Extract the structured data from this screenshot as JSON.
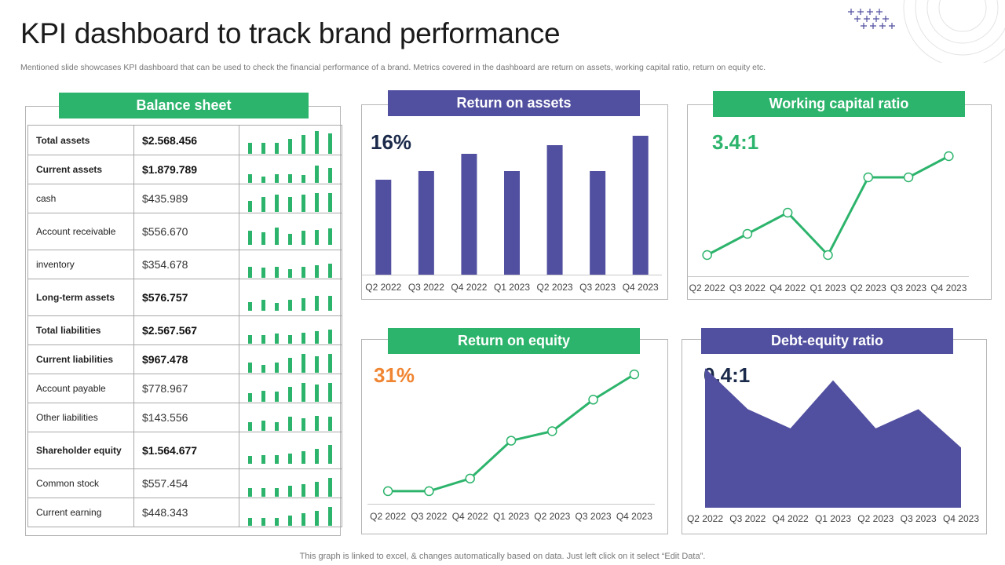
{
  "title": "KPI dashboard to track brand performance",
  "subtitle": "Mentioned slide showcases KPI dashboard that can be used to check the financial performance of a brand. Metrics covered in the dashboard are return on assets, working capital ratio, return on equity etc.",
  "footer": "This graph is linked to excel, & changes automatically based on data. Just left click on it select “Edit Data”.",
  "colors": {
    "green": "#2db46c",
    "purple": "#514f9f",
    "orange": "#f08532",
    "navy": "#1b2a4a"
  },
  "balance_sheet": {
    "title": "Balance sheet",
    "rows": [
      {
        "label": "Total assets",
        "value": "$2.568.456",
        "bold": true,
        "bars": [
          0.45,
          0.45,
          0.45,
          0.6,
          0.75,
          0.9,
          0.8
        ]
      },
      {
        "label": "Current assets",
        "value": "$1.879.789",
        "bold": true,
        "bars": [
          0.35,
          0.25,
          0.35,
          0.35,
          0.3,
          0.7,
          0.6
        ]
      },
      {
        "label": "cash",
        "value": "$435.989",
        "bold": false,
        "bars": [
          0.45,
          0.6,
          0.7,
          0.6,
          0.7,
          0.75,
          0.75
        ]
      },
      {
        "label": "Account receivable",
        "value": "$556.670",
        "bold": false,
        "bars": [
          0.55,
          0.5,
          0.7,
          0.45,
          0.55,
          0.6,
          0.65
        ]
      },
      {
        "label": "inventory",
        "value": "$354.678",
        "bold": false,
        "bars": [
          0.45,
          0.4,
          0.45,
          0.35,
          0.45,
          0.5,
          0.55
        ]
      },
      {
        "label": "Long-term assets",
        "value": "$576.757",
        "bold": true,
        "bars": [
          0.35,
          0.45,
          0.3,
          0.45,
          0.5,
          0.6,
          0.6
        ]
      },
      {
        "label": "Total liabilities",
        "value": "$2.567.567",
        "bold": true,
        "bars": [
          0.35,
          0.35,
          0.4,
          0.35,
          0.45,
          0.5,
          0.55
        ]
      },
      {
        "label": "Current liabilities",
        "value": "$967.478",
        "bold": true,
        "bars": [
          0.4,
          0.3,
          0.4,
          0.6,
          0.75,
          0.65,
          0.75
        ]
      },
      {
        "label": "Account payable",
        "value": "$778.967",
        "bold": false,
        "bars": [
          0.35,
          0.45,
          0.4,
          0.6,
          0.75,
          0.7,
          0.75
        ]
      },
      {
        "label": "Other liabilities",
        "value": "$143.556",
        "bold": false,
        "bars": [
          0.35,
          0.4,
          0.35,
          0.55,
          0.5,
          0.6,
          0.55
        ]
      },
      {
        "label": "Shareholder equity",
        "value": "$1.564.677",
        "bold": true,
        "bars": [
          0.3,
          0.35,
          0.35,
          0.4,
          0.5,
          0.6,
          0.75
        ]
      },
      {
        "label": "Common stock",
        "value": "$557.454",
        "bold": false,
        "bars": [
          0.35,
          0.35,
          0.35,
          0.45,
          0.5,
          0.6,
          0.75
        ]
      },
      {
        "label": "Current earning",
        "value": "$448.343",
        "bold": false,
        "bars": [
          0.3,
          0.3,
          0.3,
          0.4,
          0.5,
          0.6,
          0.75
        ]
      }
    ]
  },
  "chart_data": [
    {
      "id": "roa",
      "type": "bar",
      "title": "Return on assets",
      "headline": "16%",
      "categories": [
        "Q2 2022",
        "Q3 2022",
        "Q4 2022",
        "Q1 2023",
        "Q2 2023",
        "Q3 2023",
        "Q4 2023"
      ],
      "values": [
        12.1,
        13.2,
        15.4,
        13.2,
        16.5,
        13.2,
        17.7
      ],
      "ylim": [
        0,
        20
      ]
    },
    {
      "id": "wcr",
      "type": "line",
      "title": "Working capital ratio",
      "headline": "3.4:1",
      "categories": [
        "Q2 2022",
        "Q3 2022",
        "Q4 2022",
        "Q1 2023",
        "Q2 2023",
        "Q3 2023",
        "Q4 2023"
      ],
      "values": [
        2.0,
        2.3,
        2.6,
        2.0,
        3.1,
        3.1,
        3.4
      ],
      "ylim": [
        1.7,
        3.6
      ]
    },
    {
      "id": "roe",
      "type": "line",
      "title": "Return on equity",
      "headline": "31%",
      "categories": [
        "Q2 2022",
        "Q3 2022",
        "Q4 2022",
        "Q1 2023",
        "Q2 2023",
        "Q3 2023",
        "Q4 2023"
      ],
      "values": [
        10,
        10,
        12,
        18,
        19.5,
        24.5,
        28.5
      ],
      "ylim": [
        8,
        31
      ]
    },
    {
      "id": "der",
      "type": "area",
      "title": "Debt-equity ratio",
      "headline": "0.4:1",
      "categories": [
        "Q2 2022",
        "Q3 2022",
        "Q4 2022",
        "Q1 2023",
        "Q2 2023",
        "Q3 2023",
        "Q4 2023"
      ],
      "values": [
        0.58,
        0.41,
        0.33,
        0.53,
        0.33,
        0.41,
        0.25
      ],
      "ylim": [
        0,
        0.62
      ]
    }
  ]
}
